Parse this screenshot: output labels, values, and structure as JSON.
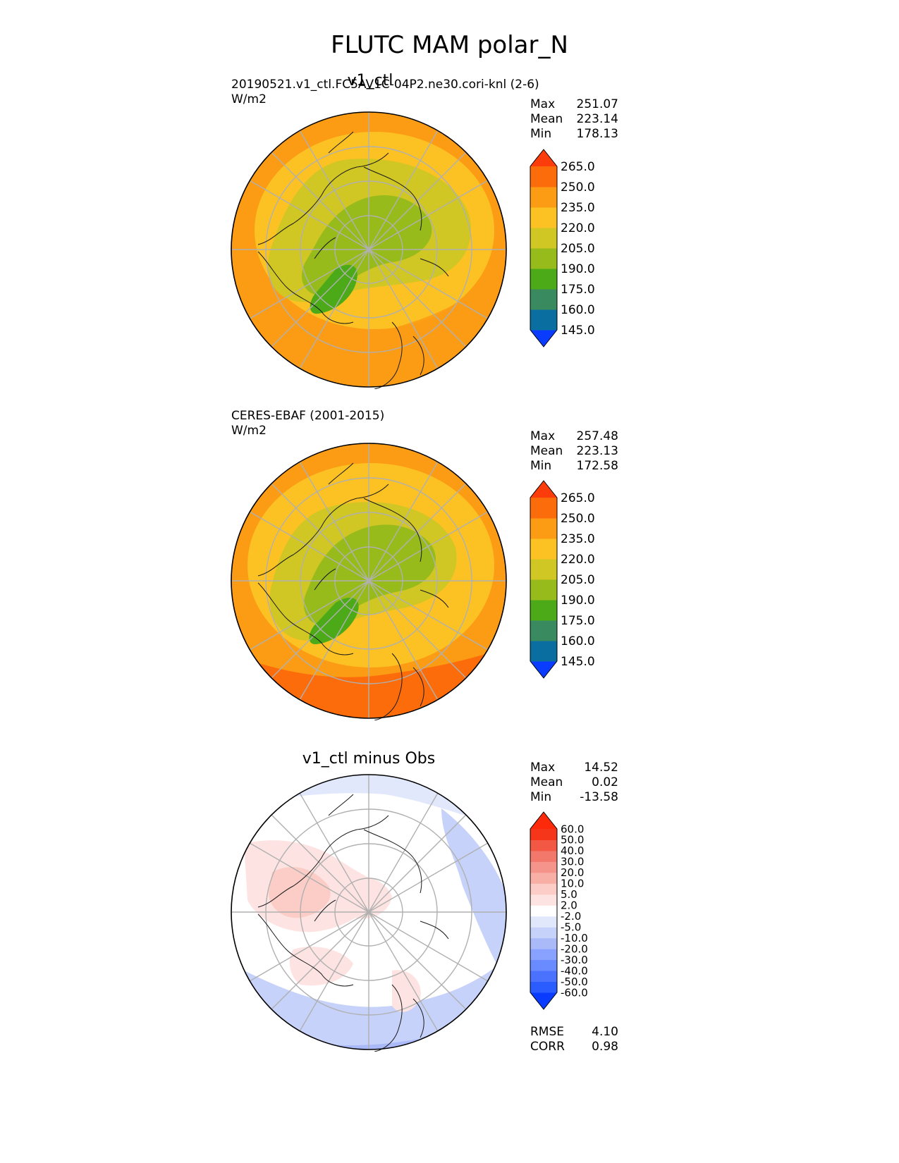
{
  "figure": {
    "title": "FLUTC MAM polar_N"
  },
  "panels": [
    {
      "title": "v1_ctl",
      "source": "20190521.v1_ctl.FC5AV1C-04P2.ne30.cori-knl (2-6)",
      "units": "W/m2",
      "stats": {
        "max_label": "Max",
        "max": "251.07",
        "mean_label": "Mean",
        "mean": "223.14",
        "min_label": "Min",
        "min": "178.13"
      },
      "colorbar": {
        "ticks": [
          "145.0",
          "160.0",
          "175.0",
          "190.0",
          "205.0",
          "220.0",
          "235.0",
          "250.0",
          "265.0"
        ],
        "colors": [
          "#0a3cff",
          "#0b6ea0",
          "#3a8a60",
          "#4caa18",
          "#98bb1c",
          "#d0c624",
          "#fcc224",
          "#fc9c14",
          "#fc6c0a",
          "#fc3c0a"
        ]
      },
      "map": {
        "projection": "north polar stereographic",
        "field": "FLUTC",
        "season": "MAM"
      }
    },
    {
      "title": "",
      "source": "CERES-EBAF (2001-2015)",
      "units": "W/m2",
      "stats": {
        "max_label": "Max",
        "max": "257.48",
        "mean_label": "Mean",
        "mean": "223.13",
        "min_label": "Min",
        "min": "172.58"
      },
      "colorbar": {
        "ticks": [
          "145.0",
          "160.0",
          "175.0",
          "190.0",
          "205.0",
          "220.0",
          "235.0",
          "250.0",
          "265.0"
        ],
        "colors": [
          "#0a3cff",
          "#0b6ea0",
          "#3a8a60",
          "#4caa18",
          "#98bb1c",
          "#d0c624",
          "#fcc224",
          "#fc9c14",
          "#fc6c0a",
          "#fc3c0a"
        ]
      },
      "map": {
        "projection": "north polar stereographic",
        "field": "FLUTC",
        "season": "MAM"
      }
    },
    {
      "title": "v1_ctl minus Obs",
      "source": "",
      "units": "",
      "stats": {
        "max_label": "Max",
        "max": "14.52",
        "mean_label": "Mean",
        "mean": "0.02",
        "min_label": "Min",
        "min": "-13.58"
      },
      "metrics": {
        "rmse_label": "RMSE",
        "rmse": "4.10",
        "corr_label": "CORR",
        "corr": "0.98"
      },
      "colorbar": {
        "ticks": [
          "-60.0",
          "-50.0",
          "-40.0",
          "-30.0",
          "-20.0",
          "-10.0",
          "-5.0",
          "-2.0",
          "2.0",
          "5.0",
          "10.0",
          "20.0",
          "30.0",
          "40.0",
          "50.0",
          "60.0"
        ],
        "colors": [
          "#0a3cff",
          "#2a5cff",
          "#4a72ff",
          "#6a8aff",
          "#8aa2ff",
          "#aabaf8",
          "#c6d2fa",
          "#e2e8fc",
          "#ffffff",
          "#fde4e2",
          "#fbcdc6",
          "#f8b0a6",
          "#f5948a",
          "#f2786c",
          "#f25844",
          "#f6361a",
          "#fc2a0a"
        ]
      },
      "map": {
        "projection": "north polar stereographic",
        "field": "FLUTC difference",
        "season": "MAM"
      }
    }
  ]
}
